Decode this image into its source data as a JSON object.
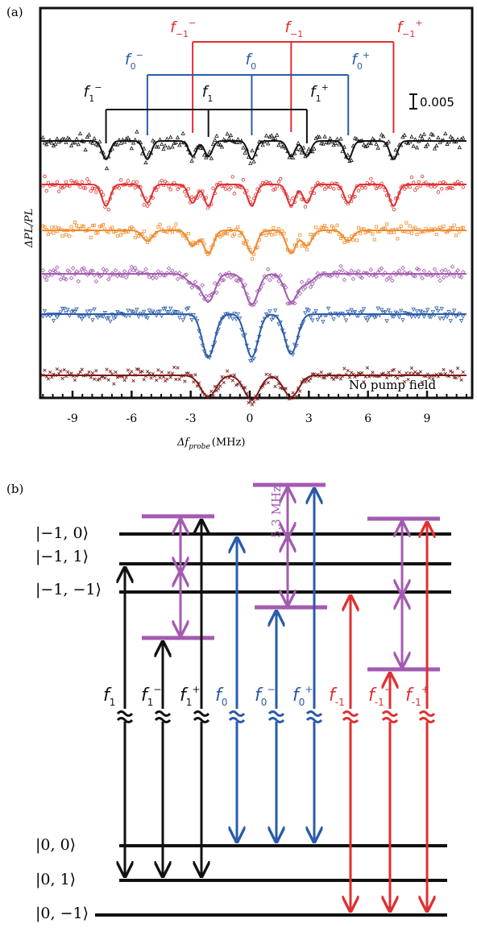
{
  "colors": {
    "black": "#111111",
    "red": "#e03030",
    "blue": "#2a5ca8",
    "orange": "#f08a2c",
    "purple": "#a35bb0",
    "dark_red": "#7a1a1a"
  },
  "panel_a": {
    "label": "(a)",
    "ylabel": "ΔPL/PL",
    "xlabel_main": "Δf",
    "xlabel_sub": "probe",
    "xlabel_unit": "(MHz)",
    "scale_bar_label": "0.005",
    "no_pump_label": "No pump field",
    "xticks": [
      {
        "value": -9,
        "label": "-9"
      },
      {
        "value": -6,
        "label": "-6"
      },
      {
        "value": -3,
        "label": "-3"
      },
      {
        "value": 0,
        "label": "0"
      },
      {
        "value": 3,
        "label": "3"
      },
      {
        "value": 6,
        "label": "6"
      },
      {
        "value": 9,
        "label": "9"
      }
    ],
    "bracket_groups": [
      {
        "name": "f_-1",
        "color": "red",
        "labels": {
          "left": "f−1−",
          "center": "f−1",
          "right": "f−1+"
        },
        "label_parts": {
          "left": {
            "main": "f",
            "sub": "−1",
            "sup": "−"
          },
          "center": {
            "main": "f",
            "sub": "−1",
            "sup": ""
          },
          "right": {
            "main": "f",
            "sub": "−1",
            "sup": "+"
          }
        },
        "positions_mhz": [
          -2.9,
          2.1,
          7.3
        ]
      },
      {
        "name": "f_0",
        "color": "blue",
        "labels": {
          "left": "f0−",
          "center": "f0",
          "right": "f0+"
        },
        "label_parts": {
          "left": {
            "main": "f",
            "sub": "0",
            "sup": "−"
          },
          "center": {
            "main": "f",
            "sub": "0",
            "sup": ""
          },
          "right": {
            "main": "f",
            "sub": "0",
            "sup": "+"
          }
        },
        "positions_mhz": [
          -5.2,
          0.1,
          5.0
        ]
      },
      {
        "name": "f_1",
        "color": "black",
        "labels": {
          "left": "f1−",
          "center": "f1",
          "right": "f1+"
        },
        "label_parts": {
          "left": {
            "main": "f",
            "sub": "1",
            "sup": "−"
          },
          "center": {
            "main": "f",
            "sub": "1",
            "sup": ""
          },
          "right": {
            "main": "f",
            "sub": "1",
            "sup": "+"
          }
        },
        "positions_mhz": [
          -7.3,
          -2.1,
          2.9
        ]
      }
    ],
    "spectra": [
      {
        "color": "black",
        "marker": "triangle-up",
        "dips_mhz": [
          -7.3,
          -5.2,
          -2.9,
          -2.1,
          0.1,
          2.1,
          2.9,
          5.0,
          7.3
        ],
        "depth": [
          0.6,
          0.6,
          0.5,
          0.5,
          0.6,
          0.5,
          0.5,
          0.6,
          0.6
        ]
      },
      {
        "color": "red",
        "marker": "circle",
        "dips_mhz": [
          -7.3,
          -5.2,
          -2.9,
          -2.1,
          0.1,
          2.1,
          2.9,
          5.0,
          7.3
        ],
        "depth": [
          0.7,
          0.6,
          0.6,
          0.7,
          0.7,
          0.7,
          0.6,
          0.6,
          0.7
        ]
      },
      {
        "color": "orange",
        "marker": "square",
        "dips_mhz": [
          -5.2,
          -2.9,
          -2.1,
          0.1,
          2.1,
          2.9,
          5.0
        ],
        "depth": [
          0.35,
          0.5,
          0.75,
          0.75,
          0.75,
          0.5,
          0.35
        ]
      },
      {
        "color": "purple",
        "marker": "diamond",
        "dips_mhz": [
          -2.9,
          -2.1,
          0.1,
          2.1,
          2.9
        ],
        "depth": [
          0.3,
          0.9,
          1.0,
          0.9,
          0.3
        ]
      },
      {
        "color": "blue",
        "marker": "triangle-down",
        "dips_mhz": [
          -2.1,
          0.1,
          2.1
        ],
        "depth": [
          1.4,
          1.4,
          1.3
        ]
      },
      {
        "color": "dark_red",
        "marker": "cross",
        "dips_mhz": [
          -2.1,
          0.1,
          2.1
        ],
        "depth": [
          0.7,
          0.8,
          0.7
        ]
      }
    ]
  },
  "panel_b": {
    "label": "(b)",
    "freq_label": "5.3 MHz",
    "state_labels": [
      {
        "id": "m1_0",
        "text": "|−1, 0⟩"
      },
      {
        "id": "m1_1",
        "text": "|−1, 1⟩"
      },
      {
        "id": "m1_m1",
        "text": "|−1, −1⟩"
      },
      {
        "id": "z_0",
        "text": "|0, 0⟩"
      },
      {
        "id": "z_1",
        "text": "|0, 1⟩"
      },
      {
        "id": "z_m1",
        "text": "|0, −1⟩"
      }
    ],
    "transition_labels": [
      {
        "color": "black",
        "main": "f",
        "sub": "1",
        "sup": ""
      },
      {
        "color": "black",
        "main": "f",
        "sub": "1",
        "sup": "−"
      },
      {
        "color": "black",
        "main": "f",
        "sub": "1",
        "sup": "+"
      },
      {
        "color": "blue",
        "main": "f",
        "sub": "0",
        "sup": ""
      },
      {
        "color": "blue",
        "main": "f",
        "sub": "0",
        "sup": "−"
      },
      {
        "color": "blue",
        "main": "f",
        "sub": "0",
        "sup": "+"
      },
      {
        "color": "red",
        "main": "f",
        "sub": "-1",
        "sup": ""
      },
      {
        "color": "red",
        "main": "f",
        "sub": "-1",
        "sup": "−"
      },
      {
        "color": "red",
        "main": "f",
        "sub": "-1",
        "sup": "+"
      }
    ]
  }
}
